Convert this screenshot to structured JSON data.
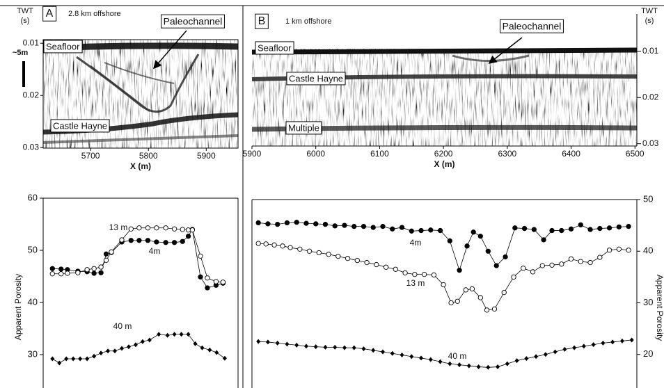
{
  "chart_data": [
    {
      "type": "seismic",
      "panel": "A",
      "subtitle": "2.8 km offshore",
      "ylabel": "TWT",
      "yunit": "(s)",
      "xlabel": "X (m)",
      "annotations": [
        "Paleochannel",
        "Seafloor",
        "Castle Hayne"
      ],
      "scale_label": "~5m",
      "xlim": [
        5618,
        5955
      ],
      "xticks": [
        5700,
        5800,
        5900
      ],
      "ylim": [
        0.0093,
        0.0301
      ],
      "yticks": [
        0.01,
        0.02,
        0.03
      ]
    },
    {
      "type": "seismic",
      "panel": "B",
      "subtitle": "1 km offshore",
      "ylabel": "TWT",
      "yunit": "(s)",
      "xlabel": "X (m)",
      "annotations": [
        "Paleochannel",
        "Seafloor",
        "Castle Hayne",
        "Multiple"
      ],
      "xlim": [
        5900,
        6503
      ],
      "xticks": [
        5900,
        6000,
        6100,
        6200,
        6300,
        6400,
        6500
      ],
      "ylim": [
        0.0019,
        0.0305
      ],
      "yticks": [
        0.01,
        0.02,
        0.03
      ]
    },
    {
      "type": "line",
      "ylabel": "Apparent Porosity",
      "xlim": [
        5618,
        5955
      ],
      "ylim": [
        23.6,
        60
      ],
      "yticks": [
        30,
        40,
        50,
        60
      ],
      "series": [
        {
          "name": "4m",
          "color": "#000000",
          "marker": "filled-circle",
          "x": [
            5634,
            5649,
            5660,
            5678,
            5694,
            5706,
            5718,
            5727,
            5736,
            5754,
            5770,
            5784,
            5799,
            5814,
            5830,
            5845,
            5859,
            5869,
            5876,
            5890,
            5902,
            5917,
            5929
          ],
          "values": [
            46.5,
            46.4,
            46.3,
            46,
            45.9,
            45.6,
            45.7,
            49.3,
            49.6,
            51.6,
            51.9,
            51.9,
            51.9,
            51.6,
            51.5,
            51.5,
            51.7,
            52.7,
            54,
            44.9,
            42.8,
            43.3,
            43.7
          ]
        },
        {
          "name": "13 m",
          "color": "#000000",
          "marker": "open-circle",
          "x": [
            5634,
            5649,
            5660,
            5678,
            5694,
            5706,
            5718,
            5727,
            5736,
            5754,
            5770,
            5784,
            5799,
            5814,
            5830,
            5845,
            5859,
            5869,
            5876,
            5890,
            5902,
            5917,
            5929
          ],
          "values": [
            45.5,
            45.5,
            45.6,
            45.7,
            46.3,
            46.5,
            46.8,
            48.1,
            49.7,
            52,
            54.1,
            54.3,
            54.3,
            54.3,
            54.3,
            54.1,
            54,
            53.9,
            53.9,
            48.9,
            44.7,
            44,
            43.9
          ]
        },
        {
          "name": "40 m",
          "color": "#000000",
          "marker": "diamond",
          "x": [
            5634,
            5646,
            5658,
            5670,
            5682,
            5694,
            5706,
            5718,
            5730,
            5742,
            5754,
            5766,
            5778,
            5790,
            5802,
            5818,
            5833,
            5845,
            5857,
            5869,
            5881,
            5893,
            5906,
            5918,
            5932
          ],
          "values": [
            29.2,
            28.4,
            29.2,
            29.2,
            29.2,
            29.2,
            29.7,
            30.3,
            30.7,
            30.7,
            31.2,
            31.5,
            31.9,
            32.5,
            32.8,
            33.9,
            33.7,
            33.9,
            33.9,
            33.9,
            32.1,
            31.3,
            30.9,
            30.4,
            29.3
          ]
        }
      ]
    },
    {
      "type": "line",
      "ylabel": "Apparent Porosity",
      "xlim": [
        5900,
        6503
      ],
      "ylim": [
        13.5,
        50
      ],
      "yticks": [
        20,
        30,
        40,
        50
      ],
      "series": [
        {
          "name": "4m",
          "color": "#000000",
          "marker": "filled-circle",
          "x": [
            5910,
            5925,
            5940,
            5955,
            5970,
            5985,
            6000,
            6015,
            6030,
            6045,
            6060,
            6075,
            6090,
            6105,
            6120,
            6135,
            6150,
            6165,
            6180,
            6195,
            6210,
            6225,
            6237,
            6247,
            6258,
            6270,
            6283,
            6297,
            6312,
            6327,
            6342,
            6357,
            6370,
            6385,
            6400,
            6415,
            6430,
            6445,
            6460,
            6475,
            6490
          ],
          "values": [
            45.5,
            45.3,
            45.2,
            45.5,
            45.6,
            45.4,
            45.3,
            45.2,
            44.9,
            45.0,
            44.8,
            44.8,
            44.6,
            44.8,
            44.3,
            44.6,
            43.9,
            44.0,
            44.1,
            44.0,
            42.0,
            36.3,
            41.0,
            43.7,
            42.9,
            40.0,
            37.2,
            38.9,
            44.5,
            44.4,
            44.2,
            42.2,
            44.0,
            44.0,
            44.3,
            45.1,
            44.2,
            44.4,
            44.5,
            44.7,
            44.8
          ]
        },
        {
          "name": "13 m",
          "color": "#000000",
          "marker": "open-circle",
          "x": [
            5910,
            5922,
            5935,
            5948,
            5960,
            5975,
            5990,
            6005,
            6020,
            6035,
            6050,
            6065,
            6080,
            6095,
            6110,
            6125,
            6140,
            6155,
            6170,
            6185,
            6200,
            6212,
            6222,
            6235,
            6245,
            6258,
            6268,
            6280,
            6295,
            6310,
            6325,
            6340,
            6355,
            6370,
            6385,
            6400,
            6415,
            6430,
            6445,
            6460,
            6475,
            6490
          ],
          "values": [
            41.5,
            41.4,
            41.2,
            41.0,
            40.7,
            40.4,
            40.0,
            39.7,
            39.4,
            39.0,
            38.6,
            38.2,
            37.8,
            37.4,
            36.9,
            36.5,
            35.8,
            35.5,
            35.5,
            35.4,
            33.5,
            30.0,
            30.3,
            32.5,
            32.7,
            31.0,
            28.6,
            28.8,
            32.0,
            35.0,
            36.7,
            36.0,
            37.2,
            37.3,
            37.5,
            38.5,
            38.0,
            37.8,
            38.8,
            40.2,
            40.4,
            40.2
          ]
        },
        {
          "name": "40 m",
          "color": "#000000",
          "marker": "diamond",
          "x": [
            5910,
            5925,
            5940,
            5955,
            5970,
            5985,
            6000,
            6015,
            6030,
            6045,
            6060,
            6075,
            6090,
            6105,
            6120,
            6135,
            6150,
            6165,
            6180,
            6195,
            6210,
            6225,
            6240,
            6255,
            6270,
            6285,
            6300,
            6315,
            6330,
            6345,
            6360,
            6375,
            6390,
            6405,
            6420,
            6435,
            6450,
            6465,
            6480,
            6495
          ],
          "values": [
            22.5,
            22.4,
            22.2,
            22.0,
            21.8,
            21.6,
            21.5,
            21.4,
            21.4,
            21.3,
            21.3,
            21.1,
            20.8,
            20.5,
            20.2,
            19.9,
            19.6,
            19.3,
            19.0,
            18.6,
            18.2,
            18.0,
            17.8,
            17.6,
            17.5,
            17.6,
            18.2,
            18.8,
            19.2,
            19.6,
            20.0,
            20.5,
            21.0,
            21.3,
            21.6,
            21.9,
            22.2,
            22.4,
            22.6,
            22.8
          ]
        }
      ]
    }
  ]
}
